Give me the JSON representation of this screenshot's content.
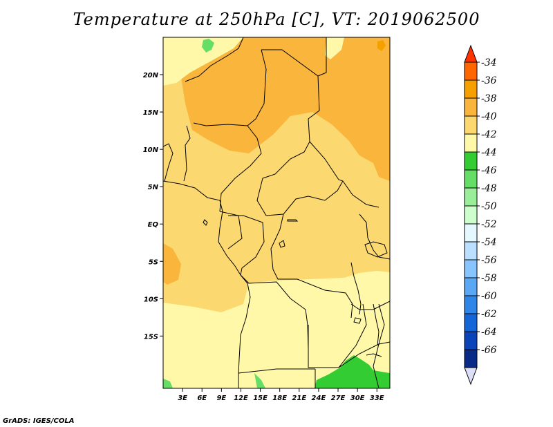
{
  "title": "Temperature at 250hPa [C], VT: 2019062500",
  "credit": "GrADS: IGES/COLA",
  "map": {
    "lon_range": [
      0,
      35
    ],
    "lat_range": [
      -22,
      25
    ],
    "lat_ticks": [
      {
        "value": 20,
        "label": "20N"
      },
      {
        "value": 15,
        "label": "15N"
      },
      {
        "value": 10,
        "label": "10N"
      },
      {
        "value": 5,
        "label": "5N"
      },
      {
        "value": 0,
        "label": "EQ"
      },
      {
        "value": -5,
        "label": "5S"
      },
      {
        "value": -10,
        "label": "10S"
      },
      {
        "value": -15,
        "label": "15S"
      }
    ],
    "lon_ticks": [
      {
        "value": 3,
        "label": "3E"
      },
      {
        "value": 6,
        "label": "6E"
      },
      {
        "value": 9,
        "label": "9E"
      },
      {
        "value": 12,
        "label": "12E"
      },
      {
        "value": 15,
        "label": "15E"
      },
      {
        "value": 18,
        "label": "18E"
      },
      {
        "value": 21,
        "label": "21E"
      },
      {
        "value": 24,
        "label": "24E"
      },
      {
        "value": 27,
        "label": "27E"
      },
      {
        "value": 30,
        "label": "30E"
      },
      {
        "value": 33,
        "label": "33E"
      }
    ]
  },
  "colorbar": {
    "levels": [
      "-34",
      "-36",
      "-38",
      "-40",
      "-42",
      "-44",
      "-46",
      "-48",
      "-50",
      "-52",
      "-54",
      "-56",
      "-58",
      "-60",
      "-62",
      "-64",
      "-66"
    ],
    "colors": [
      "#ff3300",
      "#ff6600",
      "#f6a000",
      "#f9b53c",
      "#fcd870",
      "#fff8a8",
      "#33cc33",
      "#66dd66",
      "#99ee99",
      "#ccffcc",
      "#e6f8ff",
      "#bbe0ff",
      "#88c4ff",
      "#5aa8f4",
      "#2f86e8",
      "#1466d8",
      "#0b44b8",
      "#0a2a88",
      "#dddff8"
    ]
  },
  "colors": {
    "c34": "#ff6600",
    "c36": "#f6a000",
    "c38": "#f9b53c",
    "c40": "#fcd870",
    "c42": "#fff8a8",
    "c44": "#33cc33",
    "c46": "#66dd66",
    "c48": "#99ee99"
  }
}
